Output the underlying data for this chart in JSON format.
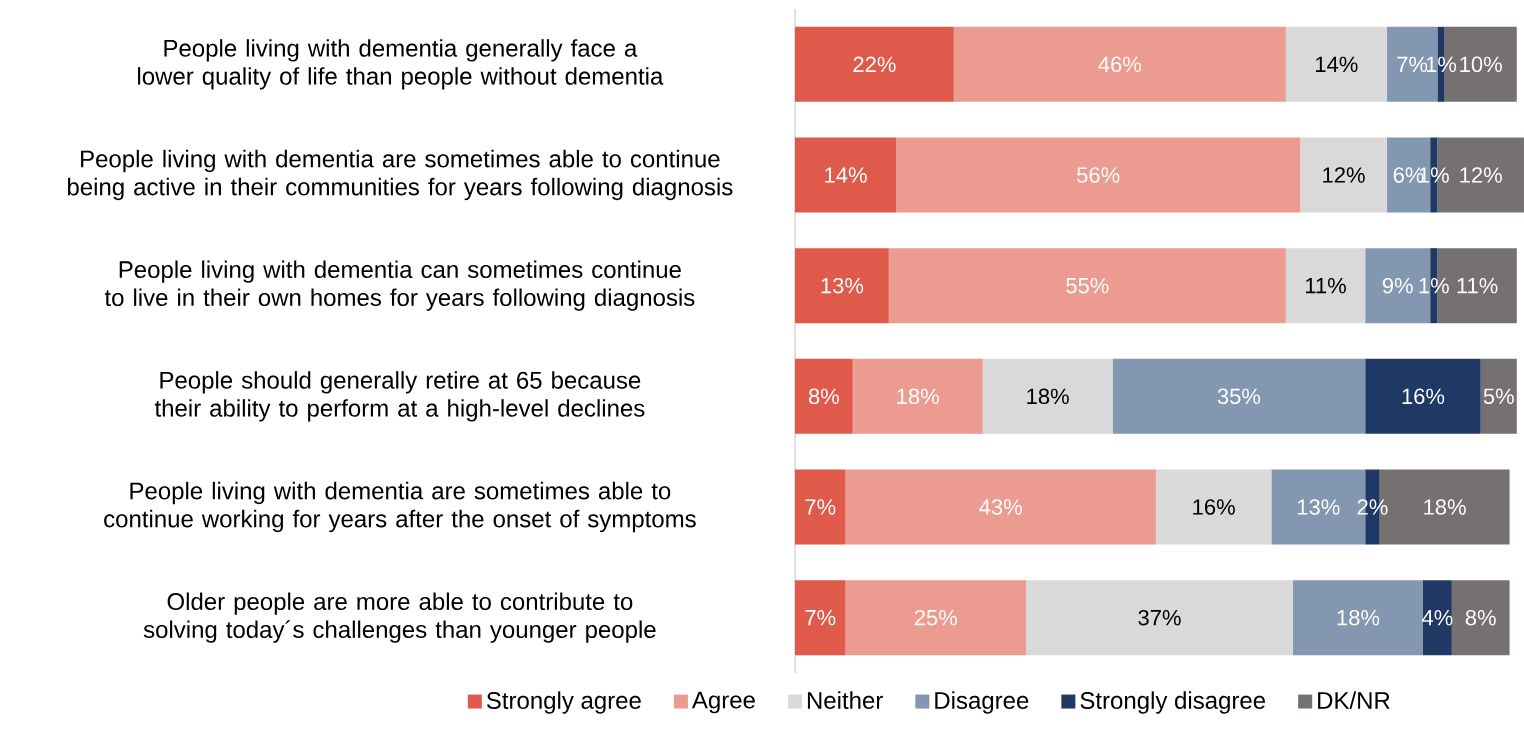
{
  "chart_data": {
    "type": "bar",
    "orientation": "horizontal",
    "stacked": true,
    "legend": "bottom",
    "categories": [
      "People living with dementia generally face a lower quality of life than people without dementia",
      "People living with dementia are sometimes able to continue being active in their communities for years following diagnosis",
      "People living with dementia can sometimes continue to live in their own homes for years following diagnosis",
      "People should generally retire at 65 because their ability to perform at a high-level declines",
      "People living with dementia are sometimes able to continue working for years after the onset of symptoms",
      "Older people are more able to contribute to solving today´s challenges than younger people"
    ],
    "series": [
      {
        "name": "Strongly agree",
        "color": "#e05a4b",
        "values": [
          22,
          14,
          13,
          8,
          7,
          7
        ],
        "value_labels": [
          "22%",
          "14%",
          "13%",
          "8%",
          "7%",
          "7%"
        ]
      },
      {
        "name": "Agree",
        "color": "#eb9b90",
        "values": [
          46,
          56,
          55,
          18,
          43,
          25
        ],
        "value_labels": [
          "46%",
          "56%",
          "55%",
          "18%",
          "43%",
          "25%"
        ]
      },
      {
        "name": "Neither",
        "color": "#d9d9d9",
        "values": [
          14,
          12,
          11,
          18,
          16,
          37
        ],
        "value_labels": [
          "14%",
          "12%",
          "11%",
          "18%",
          "16%",
          "37%"
        ]
      },
      {
        "name": "Disagree",
        "color": "#8497b0",
        "values": [
          7,
          6,
          9,
          35,
          13,
          18
        ],
        "value_labels": [
          "7%",
          "6%",
          "9%",
          "35%",
          "13%",
          "18%"
        ]
      },
      {
        "name": "Strongly disagree",
        "color": "#1f3864",
        "values": [
          1,
          1,
          1,
          16,
          2,
          4
        ],
        "value_labels": [
          "1%",
          "1%",
          "1%",
          "16%",
          "2%",
          "4%"
        ]
      },
      {
        "name": "DK/NR",
        "color": "#767171",
        "values": [
          10,
          12,
          11,
          5,
          18,
          8
        ],
        "value_labels": [
          "10%",
          "12%",
          "11%",
          "5%",
          "18%",
          "8%"
        ]
      }
    ]
  }
}
